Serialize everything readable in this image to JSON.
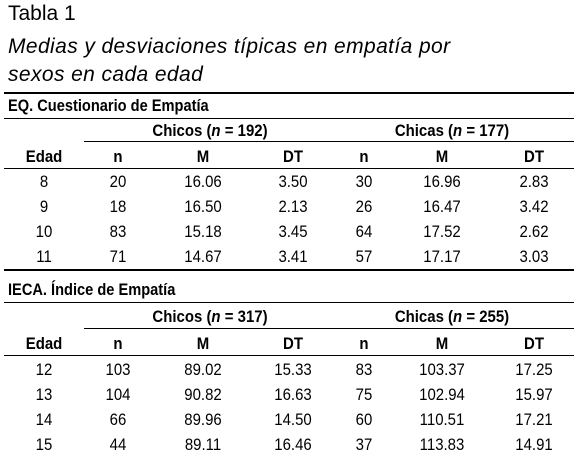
{
  "caption": {
    "label": "Tabla 1",
    "title_line1": "Medias y desviaciones típicas en empatía por",
    "title_line2": "sexos en cada edad"
  },
  "sections": [
    {
      "title": "EQ. Cuestionario de Empatía",
      "group_boys": {
        "prefix": "Chicos (",
        "n": "n",
        "suffix": " = 192)"
      },
      "group_girls": {
        "prefix": "Chicas (",
        "n": "n",
        "suffix": " = 177)"
      },
      "columns": [
        "Edad",
        "n",
        "M",
        "DT",
        "n",
        "M",
        "DT"
      ],
      "rows": [
        [
          "8",
          "20",
          "16.06",
          "3.50",
          "30",
          "16.96",
          "2.83"
        ],
        [
          "9",
          "18",
          "16.50",
          "2.13",
          "26",
          "16.47",
          "3.42"
        ],
        [
          "10",
          "83",
          "15.18",
          "3.45",
          "64",
          "17.52",
          "2.62"
        ],
        [
          "11",
          "71",
          "14.67",
          "3.41",
          "57",
          "17.17",
          "3.03"
        ]
      ]
    },
    {
      "title": "IECA. Índice de Empatía",
      "group_boys": {
        "prefix": "Chicos (",
        "n": "n",
        "suffix": " = 317)"
      },
      "group_girls": {
        "prefix": "Chicas (",
        "n": "n",
        "suffix": " = 255)"
      },
      "columns": [
        "Edad",
        "n",
        "M",
        "DT",
        "n",
        "M",
        "DT"
      ],
      "rows": [
        [
          "12",
          "103",
          "89.02",
          "15.33",
          "83",
          "103.37",
          "17.25"
        ],
        [
          "13",
          "104",
          "90.82",
          "16.63",
          "75",
          "102.94",
          "15.97"
        ],
        [
          "14",
          "66",
          "89.96",
          "14.50",
          "60",
          "110.51",
          "17.21"
        ],
        [
          "15",
          "44",
          "89.11",
          "16.46",
          "37",
          "113.83",
          "14.91"
        ]
      ]
    }
  ]
}
